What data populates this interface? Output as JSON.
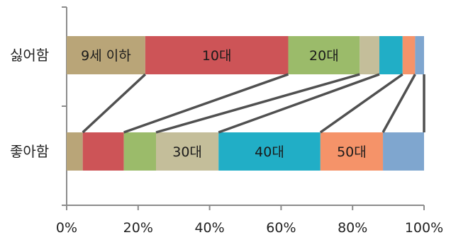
{
  "chart_data": {
    "type": "bar",
    "orientation": "horizontal",
    "stacked": true,
    "percent": true,
    "categories": [
      "싫어함",
      "좋아함"
    ],
    "xlim": [
      0,
      100
    ],
    "x_ticks": [
      "0%",
      "20%",
      "40%",
      "60%",
      "80%",
      "100%"
    ],
    "grid": false,
    "legend": "none",
    "connector_lines": true,
    "series": [
      {
        "name": "9세 이하",
        "color": "#B9A578",
        "values": [
          22.0,
          4.5
        ]
      },
      {
        "name": "10대",
        "color": "#CD5457",
        "values": [
          40.0,
          11.5
        ]
      },
      {
        "name": "20대",
        "color": "#9BBB6A",
        "values": [
          20.0,
          9.0
        ]
      },
      {
        "name": "30대",
        "color": "#C4BE9A",
        "values": [
          5.5,
          17.5
        ]
      },
      {
        "name": "40대",
        "color": "#21AEC6",
        "values": [
          6.5,
          28.5
        ]
      },
      {
        "name": "50대",
        "color": "#F59369",
        "values": [
          3.5,
          17.5
        ]
      },
      {
        "name": "",
        "color": "#7FA6CF",
        "values": [
          2.5,
          11.5
        ]
      }
    ]
  }
}
